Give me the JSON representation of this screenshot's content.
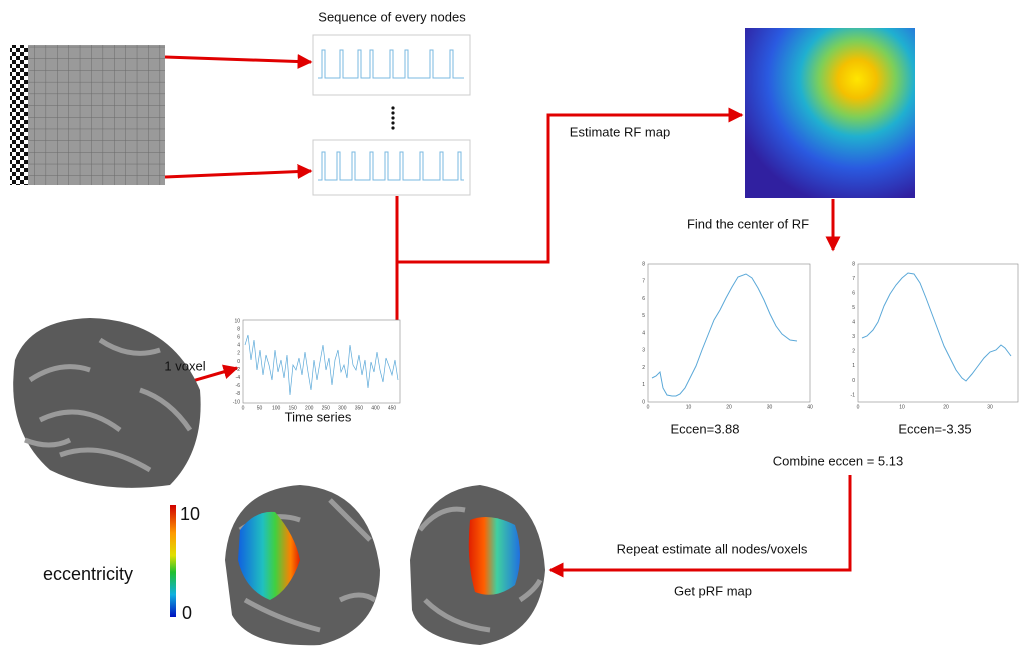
{
  "header": {
    "sequence_title": "Sequence of every nodes"
  },
  "labels": {
    "estimate_rf": "Estimate RF map",
    "find_center": "Find the center of RF",
    "voxel": "1 voxel",
    "time_series": "Time series",
    "eccen_left": "Eccen=3.88",
    "eccen_right": "Eccen=-3.35",
    "combine": "Combine eccen = 5.13",
    "repeat": "Repeat estimate all nodes/voxels",
    "get_map": "Get pRF map",
    "eccentricity": "eccentricity"
  },
  "colorbar": {
    "max": "10",
    "min": "0"
  },
  "time_series_plot": {
    "xticks": [
      0,
      50,
      100,
      150,
      200,
      250,
      300,
      350,
      400,
      450
    ],
    "yticks": [
      10,
      8,
      6,
      4,
      2,
      0,
      -2,
      -4,
      -6,
      -8,
      -10
    ]
  },
  "left_plot": {
    "xticks": [
      0,
      10,
      20,
      30,
      40
    ],
    "yticks": [
      8,
      7,
      6,
      5,
      4,
      3,
      2,
      1,
      0
    ]
  },
  "right_plot": {
    "xticks": [
      0,
      10,
      20,
      30
    ],
    "yticks": [
      8,
      7,
      6,
      5,
      4,
      3,
      2,
      1,
      0,
      -1
    ]
  }
}
